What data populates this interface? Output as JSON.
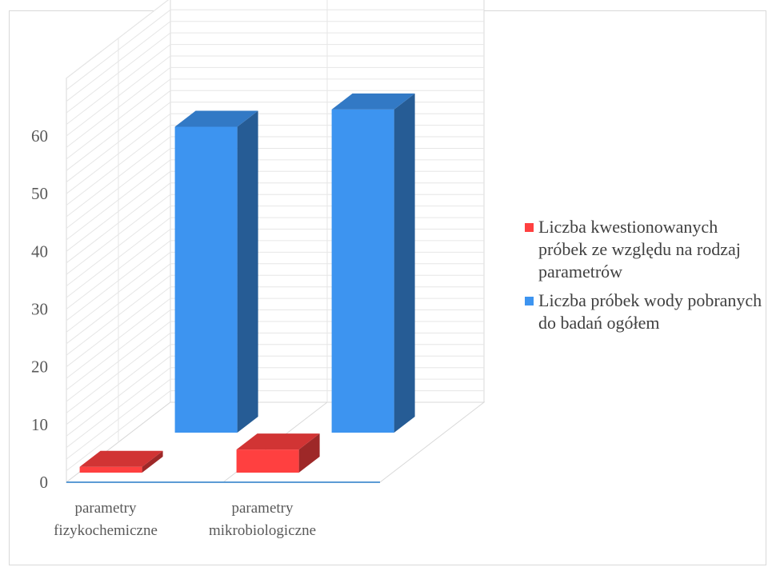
{
  "chart_data": {
    "type": "bar",
    "subtype": "3d-column",
    "categories": [
      "parametry fizykochemiczne",
      "parametry mikrobiologiczne"
    ],
    "category_lines": [
      [
        "parametry",
        "fizykochemiczne"
      ],
      [
        "parametry",
        "mikrobiologiczne"
      ]
    ],
    "series": [
      {
        "name": "Liczba kwestionowanych próbek ze względu na rodzaj parametrów",
        "values": [
          1,
          4
        ],
        "color": "#ff4040"
      },
      {
        "name": "Liczba próbek wody pobranych do badań ogółem",
        "values": [
          53,
          56
        ],
        "color": "#3d94f0"
      }
    ],
    "yticks": [
      0,
      10,
      20,
      30,
      40,
      50,
      60
    ],
    "ylim": [
      0,
      60
    ],
    "grid": true,
    "legend_position": "right"
  }
}
